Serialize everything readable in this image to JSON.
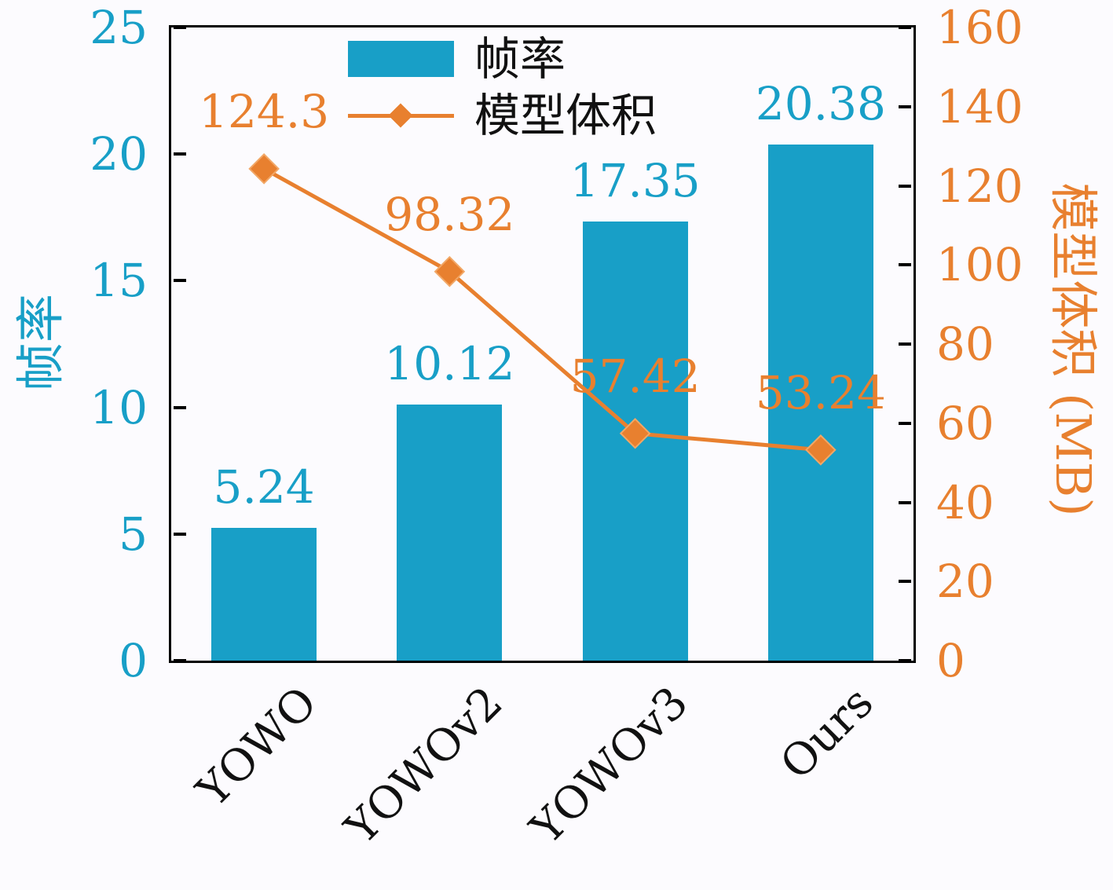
{
  "chart_data": {
    "type": "bar",
    "title": "",
    "categories": [
      "YOWO",
      "YOWOv2",
      "YOWOv3",
      "Ours"
    ],
    "series": [
      {
        "name": "帧率",
        "type": "bar",
        "axis": "left",
        "values": [
          5.24,
          10.12,
          17.35,
          20.38
        ],
        "labels": [
          "5.24",
          "10.12",
          "17.35",
          "20.38"
        ],
        "color": "#189FC7"
      },
      {
        "name": "模型体积",
        "type": "line",
        "axis": "right",
        "values": [
          124.3,
          98.32,
          57.42,
          53.24
        ],
        "labels": [
          "124.3",
          "98.32",
          "57.42",
          "53.24"
        ],
        "color": "#E8802F",
        "marker": "diamond"
      }
    ],
    "left_axis": {
      "label": "帧率",
      "min": 0,
      "max": 25,
      "ticks": [
        "0",
        "5",
        "10",
        "15",
        "20",
        "25"
      ],
      "color": "#189FC7"
    },
    "right_axis": {
      "label": "模型体积 (MB)",
      "min": 0,
      "max": 160,
      "ticks": [
        "0",
        "20",
        "40",
        "60",
        "80",
        "100",
        "120",
        "140",
        "160"
      ],
      "color": "#E8802F"
    },
    "legend": {
      "position": "top-left-inside",
      "entries": [
        "帧率",
        "模型体积"
      ]
    },
    "grid": false
  }
}
